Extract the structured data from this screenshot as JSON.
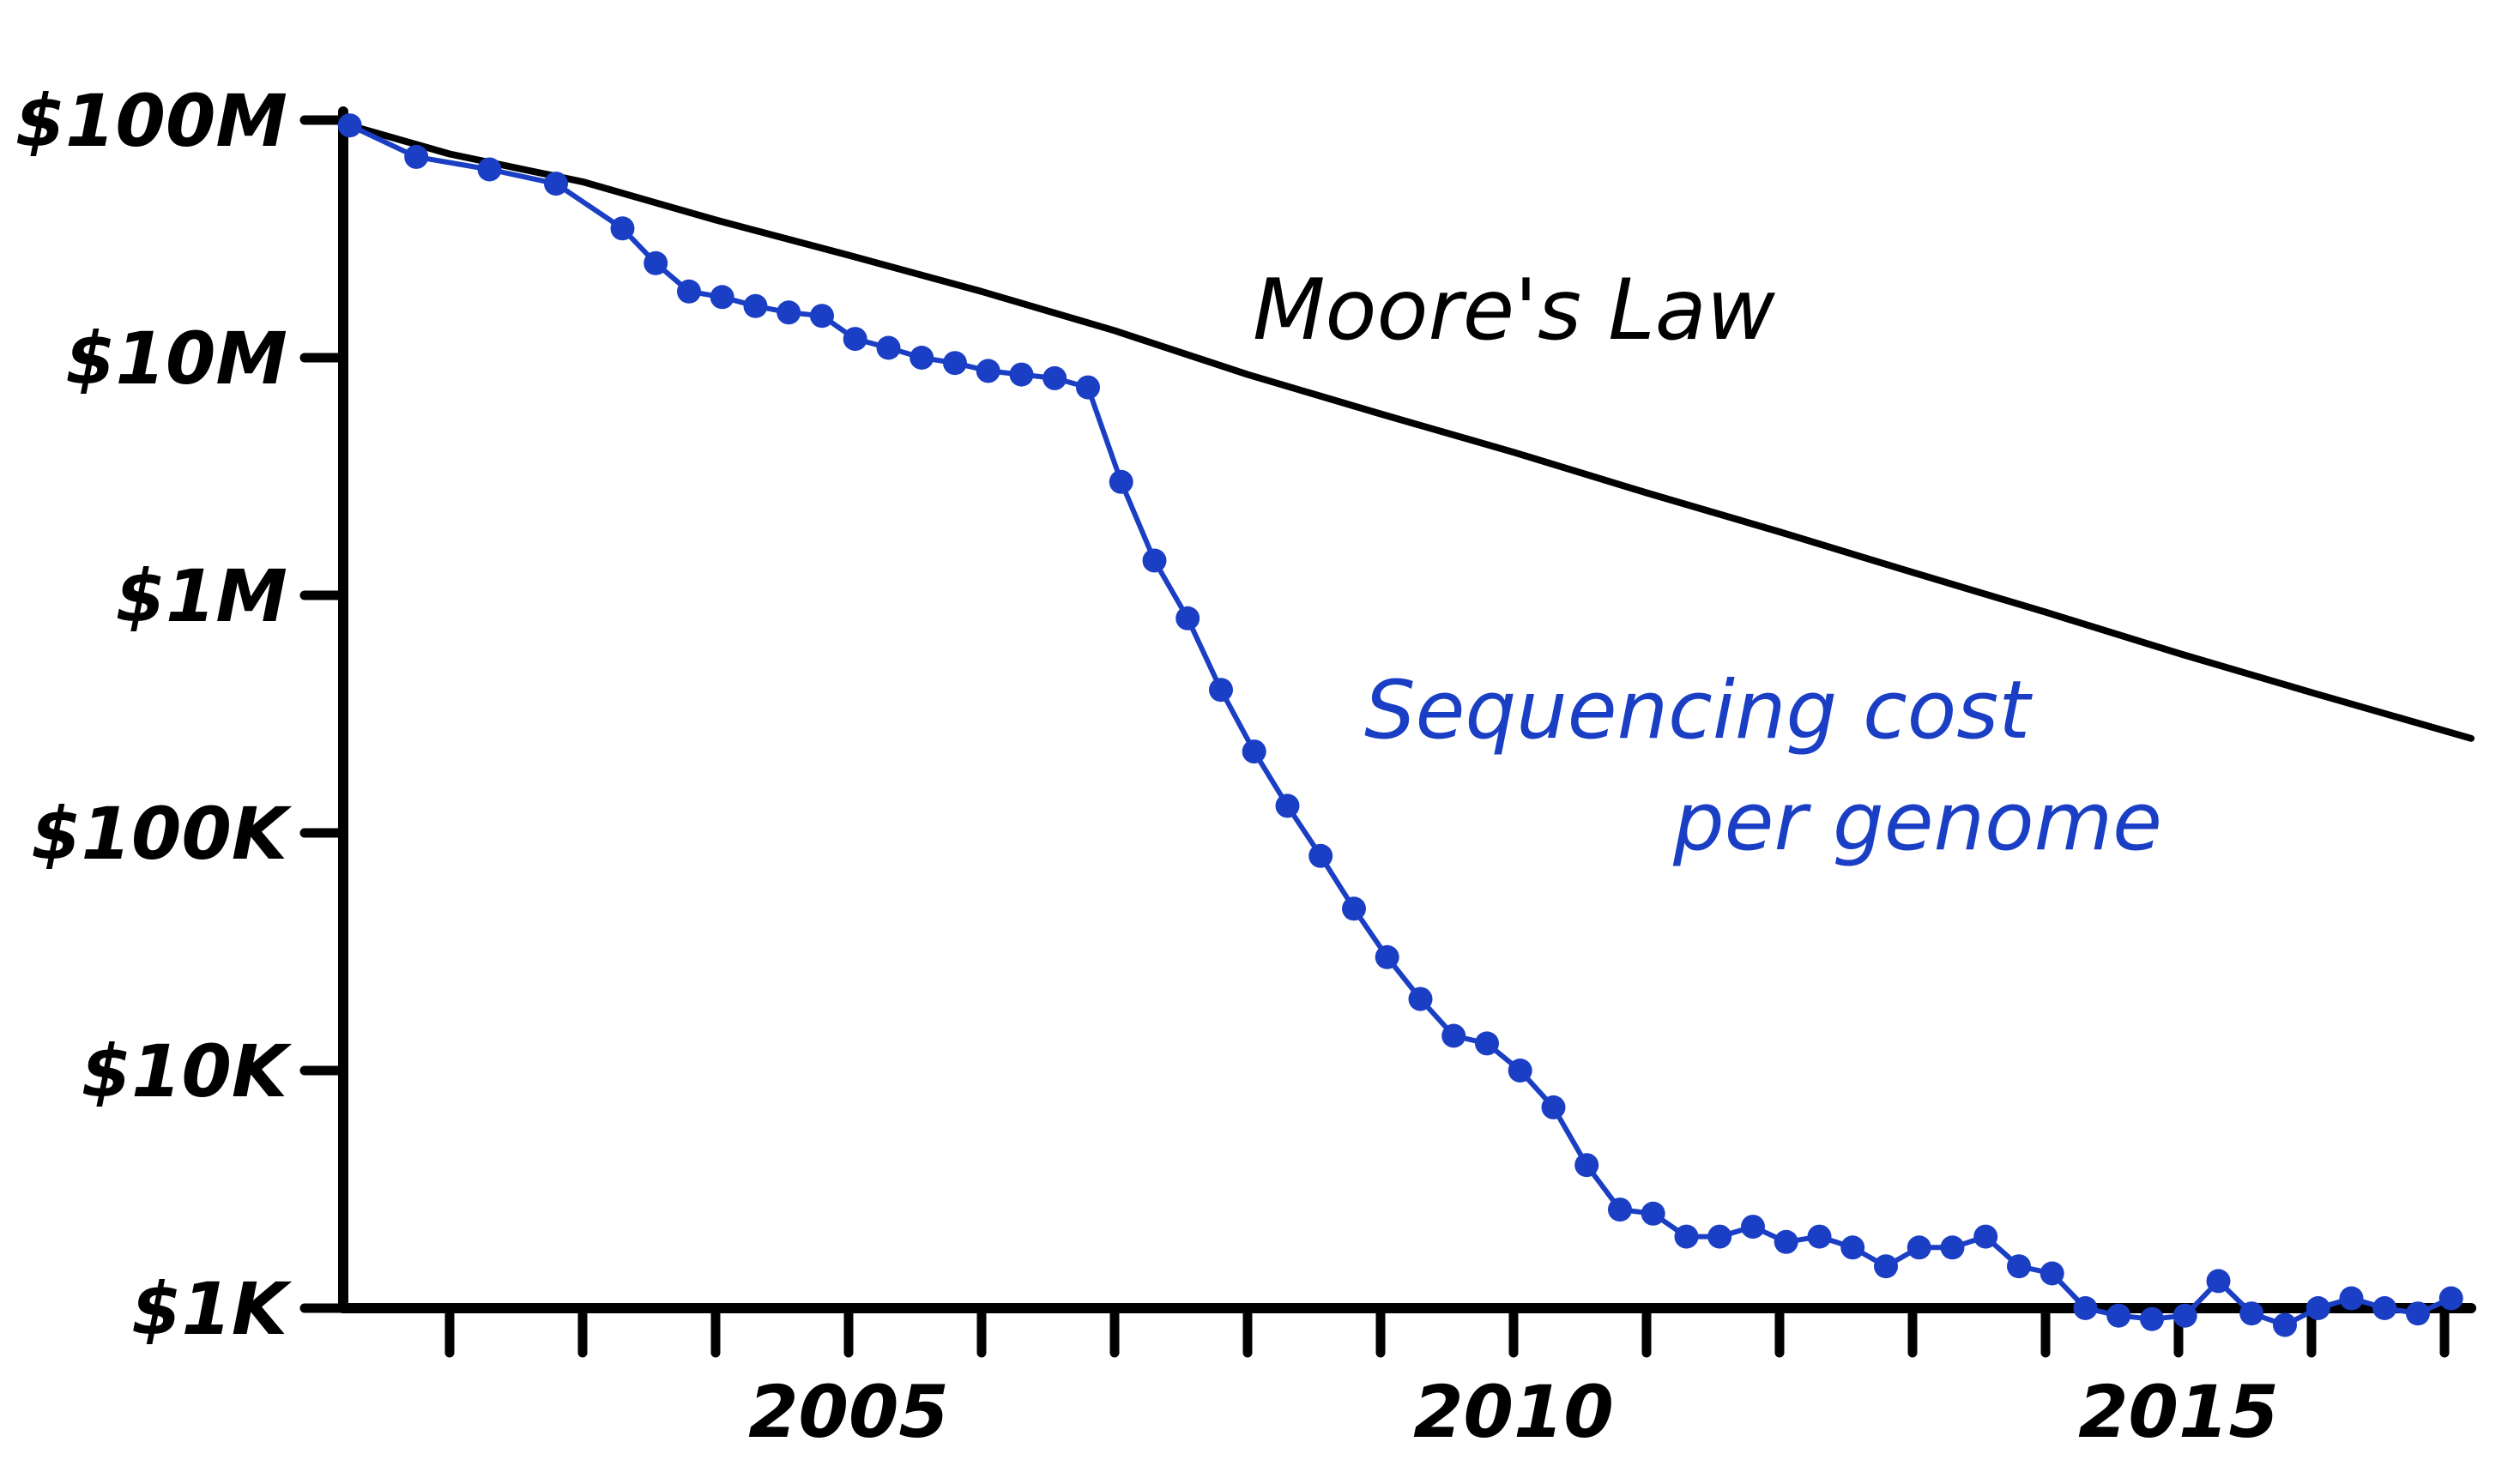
{
  "chart_data": {
    "type": "line",
    "title": "",
    "xlabel": "",
    "ylabel": "",
    "y_scale": "log",
    "ylim": [
      1000,
      100000000
    ],
    "xlim": [
      2001.2,
      2017.2
    ],
    "grid": false,
    "y_ticks": [
      {
        "value": 100000000,
        "label": "$100M"
      },
      {
        "value": 10000000,
        "label": "$10M"
      },
      {
        "value": 1000000,
        "label": "$1M"
      },
      {
        "value": 100000,
        "label": "$100K"
      },
      {
        "value": 10000,
        "label": "$10K"
      },
      {
        "value": 1000,
        "label": "$1K"
      }
    ],
    "x_ticks": [
      2002,
      2003,
      2004,
      2005,
      2006,
      2007,
      2008,
      2009,
      2010,
      2011,
      2012,
      2013,
      2014,
      2015,
      2016,
      2017
    ],
    "x_tick_labels": [
      {
        "value": 2005,
        "label": "2005"
      },
      {
        "value": 2010,
        "label": "2010"
      },
      {
        "value": 2015,
        "label": "2015"
      }
    ],
    "annotations": [
      {
        "text": "Moore's Law",
        "color": "#000000"
      },
      {
        "text_line1": "Sequencing cost",
        "text_line2": "per genome",
        "color": "#1a3fc4"
      }
    ],
    "series": [
      {
        "color": "#000000",
        "markers": false,
        "x": [
          2001.25,
          2002.0,
          2003.0,
          2004.0,
          2005.0,
          2006.0,
          2007.0,
          2008.0,
          2009.0,
          2010.0,
          2011.0,
          2012.0,
          2013.0,
          2014.0,
          2015.0,
          2016.0,
          2017.2
        ],
        "y": [
          95000000,
          72000000,
          55000000,
          38000000,
          27000000,
          19000000,
          13000000,
          8500000,
          5800000,
          4000000,
          2700000,
          1850000,
          1250000,
          850000,
          570000,
          390000,
          250000
        ]
      },
      {
        "color": "#1a3fc4",
        "markers": true,
        "x": [
          2001.25,
          2001.75,
          2002.3,
          2002.8,
          2003.3,
          2003.55,
          2003.8,
          2004.05,
          2004.3,
          2004.55,
          2004.8,
          2005.05,
          2005.3,
          2005.55,
          2005.8,
          2006.05,
          2006.3,
          2006.55,
          2006.8,
          2007.05,
          2007.3,
          2007.55,
          2007.8,
          2008.05,
          2008.3,
          2008.55,
          2008.8,
          2009.05,
          2009.3,
          2009.55,
          2009.8,
          2010.05,
          2010.3,
          2010.55,
          2010.8,
          2011.05,
          2011.3,
          2011.55,
          2011.8,
          2012.05,
          2012.3,
          2012.55,
          2012.8,
          2013.05,
          2013.3,
          2013.55,
          2013.8,
          2014.05,
          2014.3,
          2014.55,
          2014.8,
          2015.05,
          2015.3,
          2015.55,
          2015.8,
          2016.05,
          2016.3,
          2016.55,
          2016.8,
          2017.05
        ],
        "y": [
          95000000,
          70000000,
          62000000,
          54000000,
          35000000,
          25000000,
          19000000,
          18000000,
          16500000,
          15500000,
          15000000,
          12000000,
          11000000,
          10000000,
          9500000,
          8800000,
          8500000,
          8200000,
          7500000,
          3000000,
          1400000,
          800000,
          400000,
          220000,
          130000,
          80000,
          48000,
          30000,
          20000,
          14000,
          13000,
          10000,
          7000,
          4000,
          2600,
          2500,
          2000,
          2000,
          2200,
          1900,
          2000,
          1800,
          1500,
          1800,
          1800,
          2000,
          1500,
          1400,
          1000,
          930,
          900,
          930,
          1300,
          950,
          850,
          1000,
          1100,
          1000,
          950,
          1100
        ]
      }
    ]
  }
}
